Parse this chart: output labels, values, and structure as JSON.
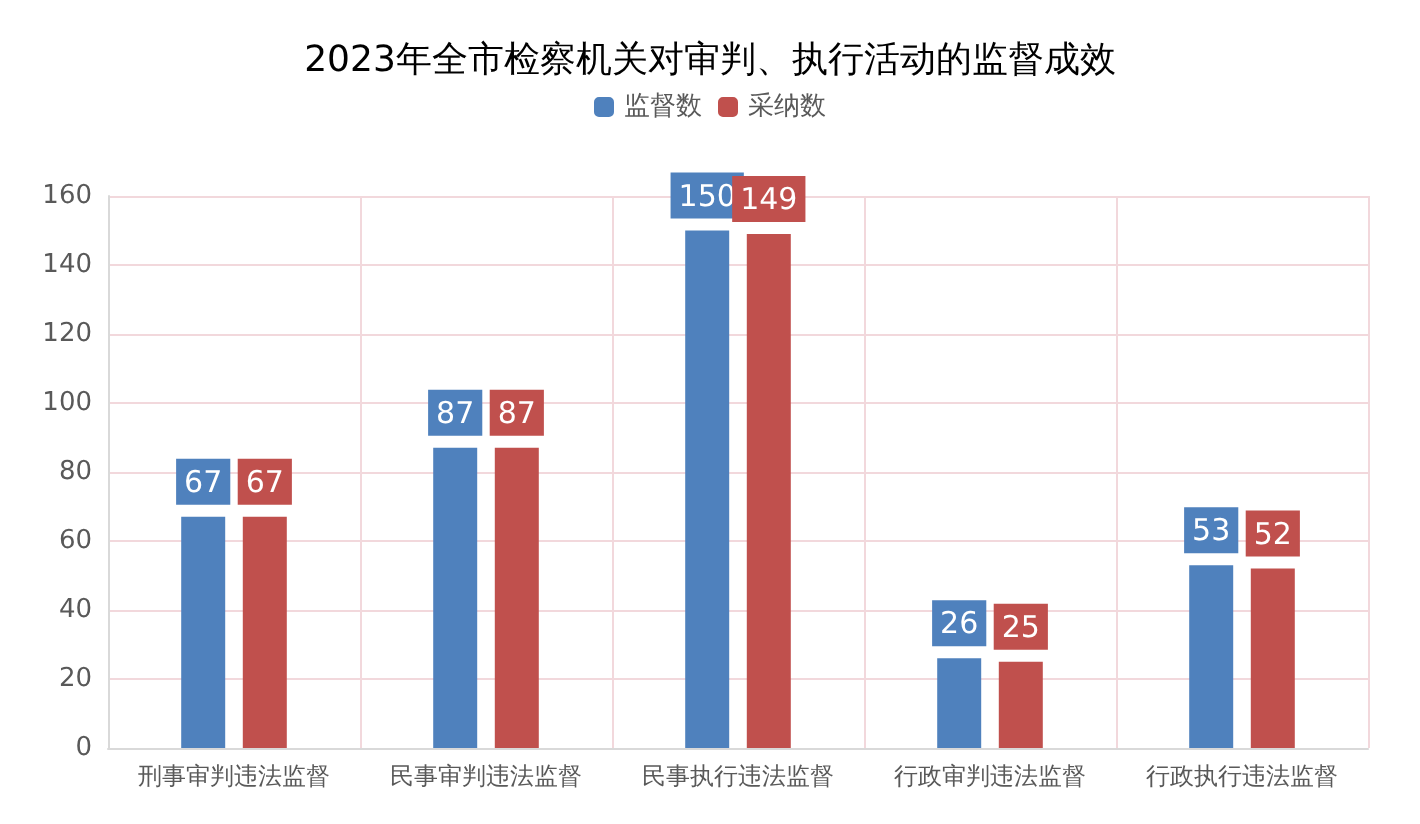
{
  "chart_data": {
    "type": "bar",
    "title": "2023年全市检察机关对审判、执行活动的监督成效",
    "categories": [
      "刑事审判违法监督",
      "民事审判违法监督",
      "民事执行违法监督",
      "行政审判违法监督",
      "行政执行违法监督"
    ],
    "series": [
      {
        "name": "监督数",
        "color": "#4f81bd",
        "values": [
          67,
          87,
          150,
          26,
          53
        ]
      },
      {
        "name": "采纳数",
        "color": "#c0504d",
        "values": [
          67,
          87,
          149,
          25,
          52
        ]
      }
    ],
    "ylim": [
      0,
      160
    ],
    "yticks": [
      0,
      20,
      40,
      60,
      80,
      100,
      120,
      140,
      160
    ],
    "grid": true,
    "legend": "top",
    "data_labels": true
  }
}
